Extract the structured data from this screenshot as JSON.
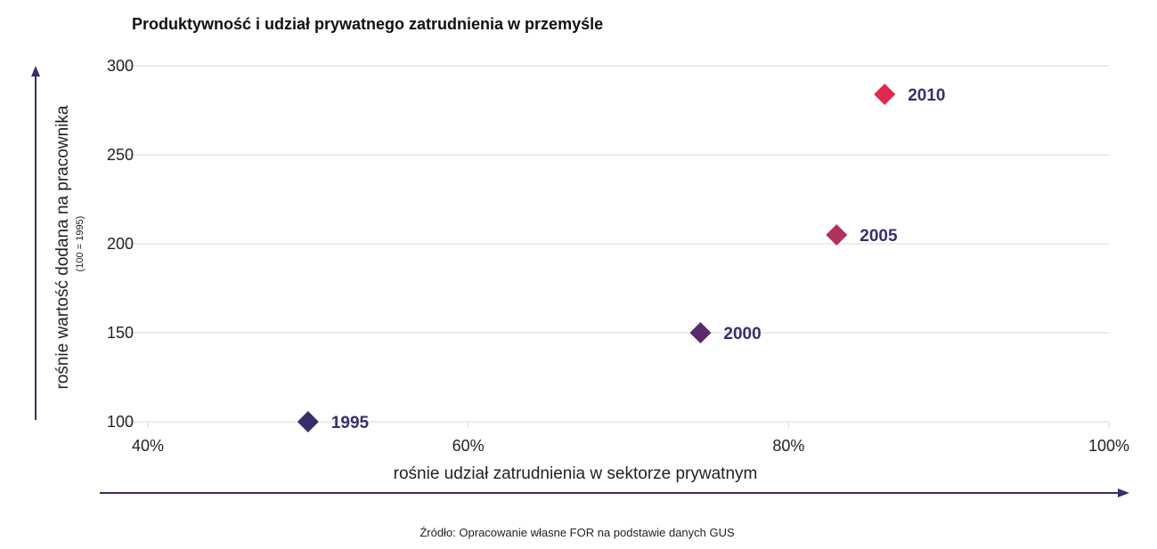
{
  "chart_data": {
    "type": "scatter",
    "title": "Produktywność i udział prywatnego zatrudnienia w przemyśle",
    "xlabel": "rośnie udział zatrudnienia w sektorze prywatnym",
    "ylabel": "rośnie wartość dodana na pracownika",
    "ylabel_sub": "(100 = 1995)",
    "xlim": [
      0.4,
      1.0
    ],
    "ylim": [
      100,
      300
    ],
    "x_ticks": [
      0.4,
      0.6,
      0.8,
      1.0
    ],
    "x_tick_labels": [
      "40%",
      "60%",
      "80%",
      "100%"
    ],
    "y_ticks": [
      100,
      150,
      200,
      250,
      300
    ],
    "y_tick_labels": [
      "100",
      "150",
      "200",
      "250",
      "300"
    ],
    "grid": "horizontal",
    "marker": "diamond",
    "points": [
      {
        "label": "1995",
        "x": 0.5,
        "y": 100,
        "color": "#3a2d6e"
      },
      {
        "label": "2000",
        "x": 0.745,
        "y": 150,
        "color": "#5b2a6b"
      },
      {
        "label": "2005",
        "x": 0.83,
        "y": 205,
        "color": "#b0325e"
      },
      {
        "label": "2010",
        "x": 0.86,
        "y": 284,
        "color": "#e0294f"
      }
    ],
    "point_label_color": "#3b2d6e",
    "source": "Źródło: Opracowanie własne FOR na podstawie danych GUS",
    "arrow_color": "#3b2d6e",
    "grid_color": "#d9d9d9"
  }
}
